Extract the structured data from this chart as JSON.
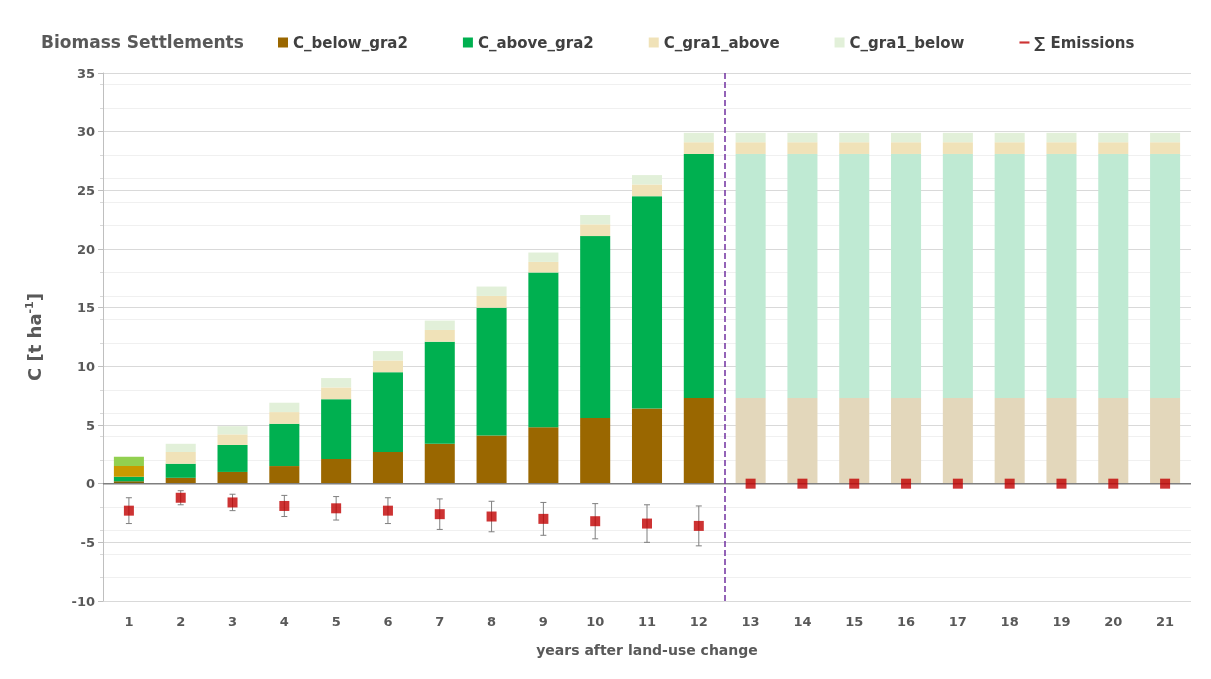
{
  "chart_data": {
    "type": "bar",
    "title": "Biomass Settlements",
    "xlabel": "years after land-use change",
    "ylabel": "C [t ha$^{-1}$]",
    "x": [
      1,
      2,
      3,
      4,
      5,
      6,
      7,
      8,
      9,
      10,
      11,
      12,
      13,
      14,
      15,
      16,
      17,
      18,
      19,
      20,
      21
    ],
    "xlim": [
      0.5,
      21.5
    ],
    "xticks": [
      1,
      2,
      3,
      4,
      5,
      6,
      7,
      8,
      9,
      10,
      11,
      12,
      13,
      14,
      15,
      16,
      17,
      18,
      19,
      20,
      21
    ],
    "ylim": [
      -10,
      35
    ],
    "yticks": [
      -10,
      -5,
      0,
      5,
      10,
      15,
      20,
      25,
      30,
      35
    ],
    "stacked": true,
    "grid": "y",
    "legend": "top",
    "series": [
      {
        "name": "C_below_gra2",
        "color": "#9a6700",
        "colors": [
          "#7f6000",
          "#9a6700",
          "#9a6700",
          "#9a6700",
          "#9a6700",
          "#9a6700",
          "#9a6700",
          "#9a6700",
          "#9a6700",
          "#9a6700",
          "#9a6700",
          "#9a6700",
          "#e3d7bb",
          "#e3d7bb",
          "#e3d7bb",
          "#e3d7bb",
          "#e3d7bb",
          "#e3d7bb",
          "#e3d7bb",
          "#e3d7bb",
          "#e3d7bb"
        ],
        "values": [
          0.2,
          0.5,
          1.0,
          1.5,
          2.1,
          2.7,
          3.4,
          4.1,
          4.8,
          5.6,
          6.4,
          7.3,
          7.3,
          7.3,
          7.3,
          7.3,
          7.3,
          7.3,
          7.3,
          7.3,
          7.3
        ]
      },
      {
        "name": "C_above_gra2",
        "color": "#00b050",
        "colors": [
          "#00b050",
          "#00b050",
          "#00b050",
          "#00b050",
          "#00b050",
          "#00b050",
          "#00b050",
          "#00b050",
          "#00b050",
          "#00b050",
          "#00b050",
          "#00b050",
          "#bfead3",
          "#bfead3",
          "#bfead3",
          "#bfead3",
          "#bfead3",
          "#bfead3",
          "#bfead3",
          "#bfead3",
          "#bfead3"
        ],
        "values": [
          0.4,
          1.2,
          2.3,
          3.6,
          5.1,
          6.8,
          8.7,
          10.9,
          13.2,
          15.5,
          18.1,
          20.8,
          20.8,
          20.8,
          20.8,
          20.8,
          20.8,
          20.8,
          20.8,
          20.8,
          20.8
        ]
      },
      {
        "name": "C_gra1_above",
        "color": "#f0e2b8",
        "colors": [
          "#c99a00",
          "#f0e2b8",
          "#f0e2b8",
          "#f0e2b8",
          "#f0e2b8",
          "#f0e2b8",
          "#f0e2b8",
          "#f0e2b8",
          "#f0e2b8",
          "#f0e2b8",
          "#f0e2b8",
          "#f0e2b8",
          "#f0e2b8",
          "#f0e2b8",
          "#f0e2b8",
          "#f0e2b8",
          "#f0e2b8",
          "#f0e2b8",
          "#f0e2b8",
          "#f0e2b8",
          "#f0e2b8"
        ],
        "values": [
          0.9,
          1.0,
          0.9,
          1.0,
          1.0,
          1.0,
          1.0,
          1.0,
          0.9,
          1.0,
          1.0,
          1.0,
          1.0,
          1.0,
          1.0,
          1.0,
          1.0,
          1.0,
          1.0,
          1.0,
          1.0
        ]
      },
      {
        "name": "C_gra1_below",
        "color": "#e2f0d9",
        "colors": [
          "#92d050",
          "#e2f0d9",
          "#e2f0d9",
          "#e2f0d9",
          "#e2f0d9",
          "#e2f0d9",
          "#e2f0d9",
          "#e2f0d9",
          "#e2f0d9",
          "#e2f0d9",
          "#e2f0d9",
          "#e2f0d9",
          "#e2f0d9",
          "#e2f0d9",
          "#e2f0d9",
          "#e2f0d9",
          "#e2f0d9",
          "#e2f0d9",
          "#e2f0d9",
          "#e2f0d9",
          "#e2f0d9"
        ],
        "values": [
          0.8,
          0.7,
          0.7,
          0.8,
          0.8,
          0.8,
          0.8,
          0.8,
          0.8,
          0.8,
          0.8,
          0.8,
          0.8,
          0.8,
          0.8,
          0.8,
          0.8,
          0.8,
          0.8,
          0.8,
          0.8
        ]
      },
      {
        "name": "∑ Emissions",
        "type": "scatter",
        "marker": "square",
        "color": "#c00000",
        "values": [
          -2.3,
          -1.2,
          -1.6,
          -1.9,
          -2.1,
          -2.3,
          -2.6,
          -2.8,
          -3.0,
          -3.2,
          -3.4,
          -3.6,
          0,
          0,
          0,
          0,
          0,
          0,
          0,
          0,
          0
        ],
        "errors": [
          1.1,
          0.6,
          0.7,
          0.9,
          1.0,
          1.1,
          1.3,
          1.3,
          1.4,
          1.5,
          1.6,
          1.7,
          null,
          null,
          null,
          null,
          null,
          null,
          null,
          null,
          null
        ]
      }
    ],
    "ref_lines": [
      {
        "axis": "x",
        "value": 12.5,
        "color": "#7030a0",
        "line_style": "dashed"
      }
    ]
  }
}
